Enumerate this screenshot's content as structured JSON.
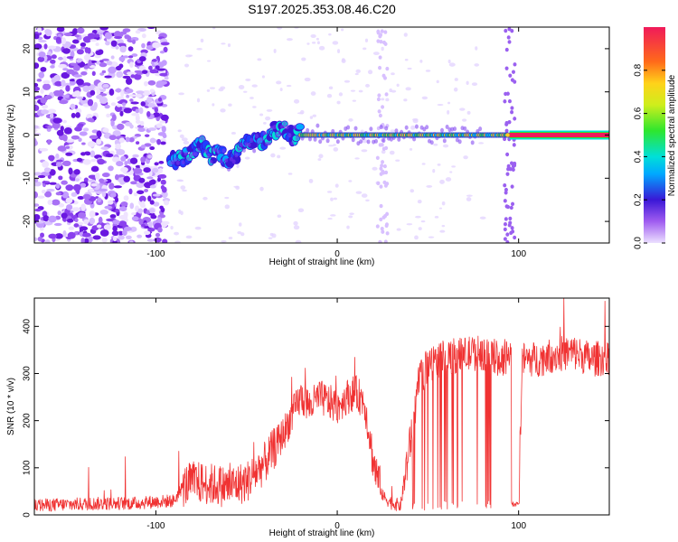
{
  "figure_title": "S197.2025.353.08.46.C20",
  "colors": {
    "spectrum_color": "#7b1fe8",
    "snr_line": "#f03232",
    "frame": "#000000"
  },
  "chart_data": [
    {
      "type": "heatmap",
      "panel": "top",
      "xlabel": "Height of straight line (km)",
      "ylabel": "Frequency (Hz)",
      "xlim": [
        -167,
        150
      ],
      "ylim": [
        -25,
        25
      ],
      "xticks": [
        -100,
        0,
        100
      ],
      "yticks": [
        -20,
        -10,
        0,
        10,
        20
      ],
      "colorbar": {
        "label": "Normalized spectral amplitude",
        "range": [
          0,
          1
        ],
        "ticks": [
          "0.0",
          "0.2",
          "0.4",
          "0.6",
          "0.8"
        ]
      },
      "ridge": {
        "x": [
          -92,
          -85,
          -80,
          -75,
          -70,
          -65,
          -60,
          -55,
          -50,
          -45,
          -40,
          -35,
          -30,
          -25,
          -20,
          -15,
          -10,
          -5,
          0,
          10,
          20,
          40,
          60,
          80,
          95,
          150
        ],
        "freq": [
          -6,
          -5,
          -4,
          -2,
          -5,
          -4,
          -6,
          -5,
          -1,
          -2,
          -1,
          1,
          2,
          0,
          0.5,
          0,
          0.5,
          0,
          0,
          0,
          0,
          0,
          0,
          0,
          0,
          0
        ]
      }
    },
    {
      "type": "line",
      "panel": "bottom",
      "xlabel": "Height of straight line (km)",
      "ylabel": "SNR (10 * v/v)",
      "xlim": [
        -167,
        150
      ],
      "ylim": [
        0,
        460
      ],
      "xticks": [
        -100,
        0,
        100
      ],
      "yticks": [
        0,
        100,
        200,
        300,
        400
      ],
      "series": [
        {
          "name": "SNR",
          "x": [
            -167,
            -150,
            -130,
            -110,
            -100,
            -90,
            -85,
            -80,
            -70,
            -60,
            -50,
            -45,
            -40,
            -35,
            -30,
            -25,
            -20,
            -15,
            -10,
            -5,
            0,
            5,
            10,
            15,
            20,
            25,
            30,
            35,
            40,
            45,
            50,
            60,
            70,
            80,
            90,
            95,
            98,
            100,
            102,
            110,
            120,
            130,
            140,
            150
          ],
          "values": [
            20,
            22,
            24,
            25,
            28,
            30,
            60,
            70,
            65,
            60,
            70,
            90,
            110,
            140,
            170,
            210,
            250,
            230,
            250,
            240,
            230,
            250,
            260,
            240,
            110,
            40,
            25,
            20,
            150,
            280,
            320,
            335,
            340,
            345,
            330,
            340,
            345,
            30,
            330,
            330,
            340,
            345,
            330,
            335
          ]
        }
      ]
    }
  ]
}
